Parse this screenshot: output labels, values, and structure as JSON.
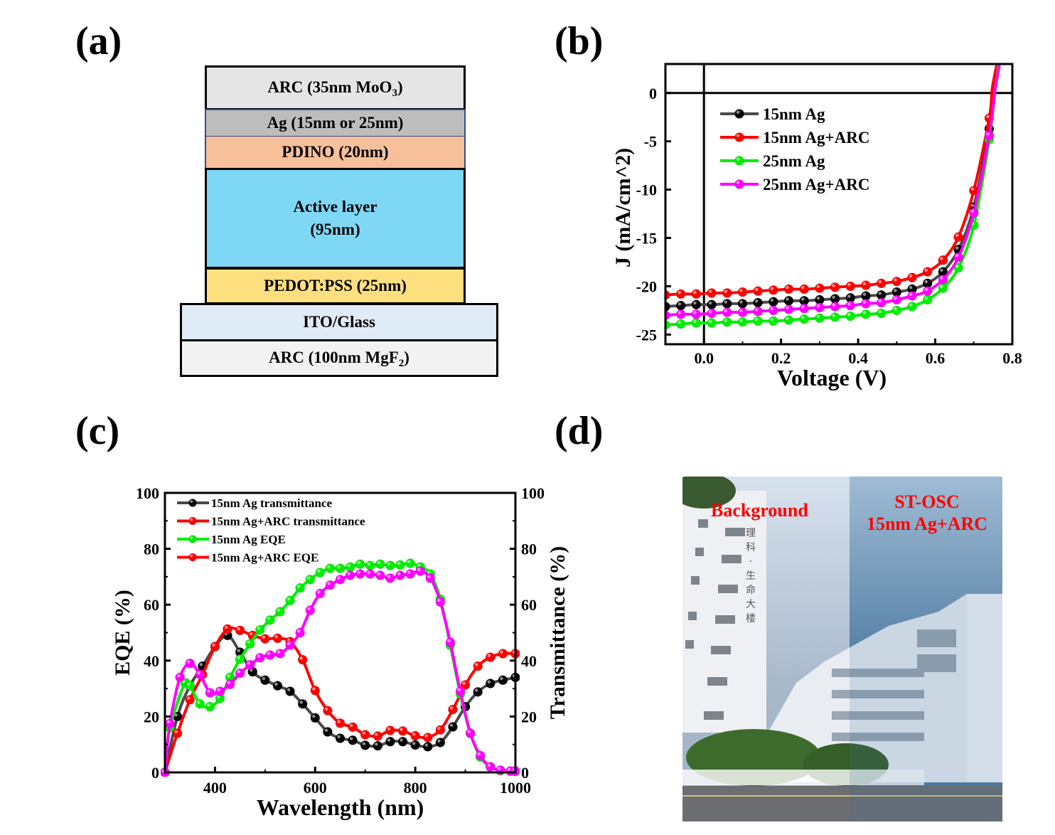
{
  "figure": {
    "panel_labels": [
      "(a)",
      "(b)",
      "(c)",
      "(d)"
    ]
  },
  "device_stack": {
    "layers": [
      {
        "name": "arc-top",
        "text_main": "ARC (35nm MoO",
        "text_sub": "3",
        "text_end": ")",
        "color": "#e5e5e5"
      },
      {
        "name": "ag",
        "text_main": "Ag (15nm or 25nm)",
        "color": "#bdbdbd"
      },
      {
        "name": "pdino",
        "text_main": "PDINO (20nm)",
        "color": "#f7c09a"
      },
      {
        "name": "active",
        "text_main": "Active layer",
        "text_line2": "(95nm)",
        "color": "#7fd7f6"
      },
      {
        "name": "pedot",
        "text_main": "PEDOT:PSS (25nm)",
        "color": "#fddf80"
      },
      {
        "name": "ito",
        "text_main": "ITO/Glass",
        "color": "#dfebf6"
      },
      {
        "name": "arc-bottom",
        "text_main": "ARC (100nm MgF",
        "text_sub": "2",
        "text_end": ")",
        "color": "#f2f2f2"
      }
    ]
  },
  "chart_data": [
    {
      "id": "jv",
      "type": "line",
      "title": "",
      "xlabel": "Voltage (V)",
      "ylabel": "J (mA/cm^2)",
      "xlim": [
        -0.1,
        0.8
      ],
      "ylim": [
        -26,
        3
      ],
      "xticks": [
        0.0,
        0.2,
        0.4,
        0.6,
        0.8
      ],
      "xtick_labels": [
        "0.0",
        "0.2",
        "0.4",
        "0.6",
        "0.8"
      ],
      "yticks": [
        0,
        -5,
        -10,
        -15,
        -20,
        -25
      ],
      "ytick_labels": [
        "0",
        "-5",
        "-10",
        "-15",
        "-20",
        "-25"
      ],
      "reference_lines": {
        "x": 0,
        "y": 0
      },
      "legend_position": "upper-left",
      "x": [
        -0.1,
        -0.06,
        -0.02,
        0.02,
        0.06,
        0.1,
        0.14,
        0.18,
        0.22,
        0.26,
        0.3,
        0.34,
        0.38,
        0.42,
        0.46,
        0.5,
        0.54,
        0.58,
        0.62,
        0.66,
        0.7,
        0.74
      ],
      "series": [
        {
          "name": "15nm Ag",
          "color": "#4a4a4a",
          "marker": "#000000",
          "values": [
            -22.1,
            -22.0,
            -21.9,
            -21.9,
            -21.8,
            -21.8,
            -21.7,
            -21.6,
            -21.5,
            -21.5,
            -21.4,
            -21.3,
            -21.2,
            -21.0,
            -20.9,
            -20.6,
            -20.3,
            -19.7,
            -18.5,
            -16.2,
            -11.8,
            -3.7
          ],
          "tail": [
            [
              0.755,
              0.5
            ],
            [
              0.765,
              3
            ]
          ]
        },
        {
          "name": "15nm Ag+ARC",
          "color": "#ff0000",
          "marker": "#ff0000",
          "values": [
            -20.9,
            -20.8,
            -20.8,
            -20.7,
            -20.7,
            -20.6,
            -20.5,
            -20.4,
            -20.3,
            -20.3,
            -20.2,
            -20.1,
            -20.0,
            -19.9,
            -19.7,
            -19.5,
            -19.1,
            -18.5,
            -17.3,
            -14.9,
            -10.1,
            -2.6
          ],
          "tail": [
            [
              0.748,
              0.5
            ],
            [
              0.76,
              3
            ]
          ]
        },
        {
          "name": "25nm Ag",
          "color": "#00ee00",
          "marker": "#00ee00",
          "values": [
            -24.0,
            -23.9,
            -23.8,
            -23.8,
            -23.7,
            -23.7,
            -23.6,
            -23.6,
            -23.5,
            -23.4,
            -23.3,
            -23.2,
            -23.1,
            -22.9,
            -22.8,
            -22.5,
            -22.1,
            -21.4,
            -20.2,
            -18.1,
            -13.7,
            -4.8
          ],
          "tail": [
            [
              0.756,
              0.5
            ],
            [
              0.765,
              3
            ]
          ]
        },
        {
          "name": "25nm Ag+ARC",
          "color": "#ff00ff",
          "marker": "#ff00ff",
          "values": [
            -23.0,
            -22.9,
            -22.9,
            -22.8,
            -22.7,
            -22.7,
            -22.6,
            -22.5,
            -22.4,
            -22.3,
            -22.2,
            -22.1,
            -22.0,
            -21.8,
            -21.7,
            -21.4,
            -21.0,
            -20.5,
            -19.3,
            -17.0,
            -12.4,
            -4.4
          ],
          "tail": [
            [
              0.756,
              0.5
            ],
            [
              0.767,
              3
            ]
          ]
        }
      ]
    },
    {
      "id": "eqe",
      "type": "line",
      "title": "",
      "xlabel": "Wavelength (nm)",
      "ylabel": "EQE (%)",
      "y2label": "Transmittance (%)",
      "xlim": [
        300,
        1000
      ],
      "ylim": [
        0,
        100
      ],
      "y2lim": [
        0,
        100
      ],
      "xticks": [
        400,
        600,
        800,
        1000
      ],
      "xtick_labels": [
        "400",
        "600",
        "800",
        "1000"
      ],
      "yticks": [
        0,
        20,
        40,
        60,
        80,
        100
      ],
      "ytick_labels": [
        "0",
        "20",
        "40",
        "60",
        "80",
        "100"
      ],
      "legend_position": "upper-left",
      "series": [
        {
          "name": "15nm Ag transmittance",
          "axis": "right",
          "color": "#4a4a4a",
          "marker": "#000000",
          "legend_marker": "#000000",
          "x": [
            300,
            325,
            350,
            375,
            400,
            425,
            450,
            475,
            500,
            525,
            550,
            575,
            600,
            625,
            650,
            675,
            700,
            725,
            750,
            775,
            800,
            825,
            850,
            875,
            900,
            925,
            950,
            975,
            1000
          ],
          "values": [
            0,
            20,
            31,
            38,
            45,
            49,
            43,
            36,
            33,
            31,
            29,
            24.5,
            19.5,
            14.5,
            12.2,
            11.5,
            9.7,
            9.5,
            11,
            11,
            9.8,
            9.2,
            10.7,
            16.3,
            23.5,
            28.8,
            31.8,
            33,
            34
          ]
        },
        {
          "name": "15nm Ag+ARC transmittance",
          "axis": "right",
          "color": "#ff0000",
          "marker": "#ff0000",
          "legend_marker": "#ff0000",
          "x": [
            300,
            325,
            350,
            375,
            400,
            425,
            450,
            475,
            500,
            525,
            550,
            575,
            600,
            625,
            650,
            675,
            700,
            725,
            750,
            775,
            800,
            825,
            850,
            875,
            900,
            925,
            950,
            975,
            1000
          ],
          "values": [
            0,
            14,
            26,
            35,
            45,
            51.3,
            50.8,
            49,
            47.8,
            48,
            46.8,
            40.3,
            29.3,
            22.1,
            17.6,
            16.2,
            13.5,
            13,
            15,
            14.8,
            13.1,
            12.5,
            15.2,
            22.5,
            31.3,
            38,
            41.2,
            42.5,
            42.5
          ]
        },
        {
          "name": "15nm Ag EQE",
          "axis": "left",
          "color": "#00ee00",
          "marker": "#00ee00",
          "legend_marker": "#00ee00",
          "x": [
            300,
            310,
            340,
            350,
            370,
            390,
            410,
            430,
            450,
            470,
            490,
            510,
            530,
            550,
            570,
            590,
            610,
            630,
            650,
            670,
            690,
            710,
            730,
            750,
            770,
            790,
            810,
            830,
            850,
            870,
            890,
            910,
            930,
            950,
            970,
            990,
            1000
          ],
          "values": [
            0,
            16,
            32,
            31,
            24.5,
            23.5,
            26.5,
            34,
            40.5,
            46,
            51,
            54.5,
            57.5,
            61.5,
            66,
            69,
            71.5,
            73,
            73,
            73.5,
            74.5,
            74,
            74.5,
            74,
            74.2,
            74.8,
            73.5,
            71,
            62,
            45.5,
            28,
            14,
            5.5,
            2,
            0.6,
            0.4,
            0.3
          ]
        },
        {
          "name": "15nm Ag+ARC EQE",
          "axis": "left",
          "color": "#ff00ff",
          "marker": "#ff00ff",
          "legend_marker": "#ff0000",
          "x": [
            300,
            310,
            330,
            350,
            370,
            390,
            410,
            430,
            450,
            470,
            490,
            510,
            530,
            550,
            570,
            590,
            610,
            630,
            650,
            670,
            690,
            710,
            730,
            750,
            770,
            790,
            810,
            830,
            850,
            870,
            890,
            910,
            930,
            950,
            970,
            990,
            1000
          ],
          "values": [
            0,
            17.5,
            34,
            39,
            35,
            28.5,
            29,
            31.5,
            35.5,
            38.5,
            41,
            42,
            42.5,
            45.5,
            50,
            58,
            64,
            67,
            69,
            70.5,
            71,
            71,
            70.5,
            69.5,
            70.5,
            71,
            72,
            69.5,
            61,
            46.5,
            29,
            14,
            6,
            2,
            0.8,
            0.5,
            0.5
          ]
        }
      ]
    }
  ],
  "photo": {
    "description": "Building photo viewed plain (left) and through the semitransparent device (right)",
    "caption_left": "Background",
    "caption_right_line1": "ST-OSC",
    "caption_right_line2": "15nm Ag+ARC",
    "building_sign": [
      "理",
      "科",
      "·",
      "生",
      "命",
      "大",
      "楼"
    ],
    "caption_color": "#ff0000"
  }
}
